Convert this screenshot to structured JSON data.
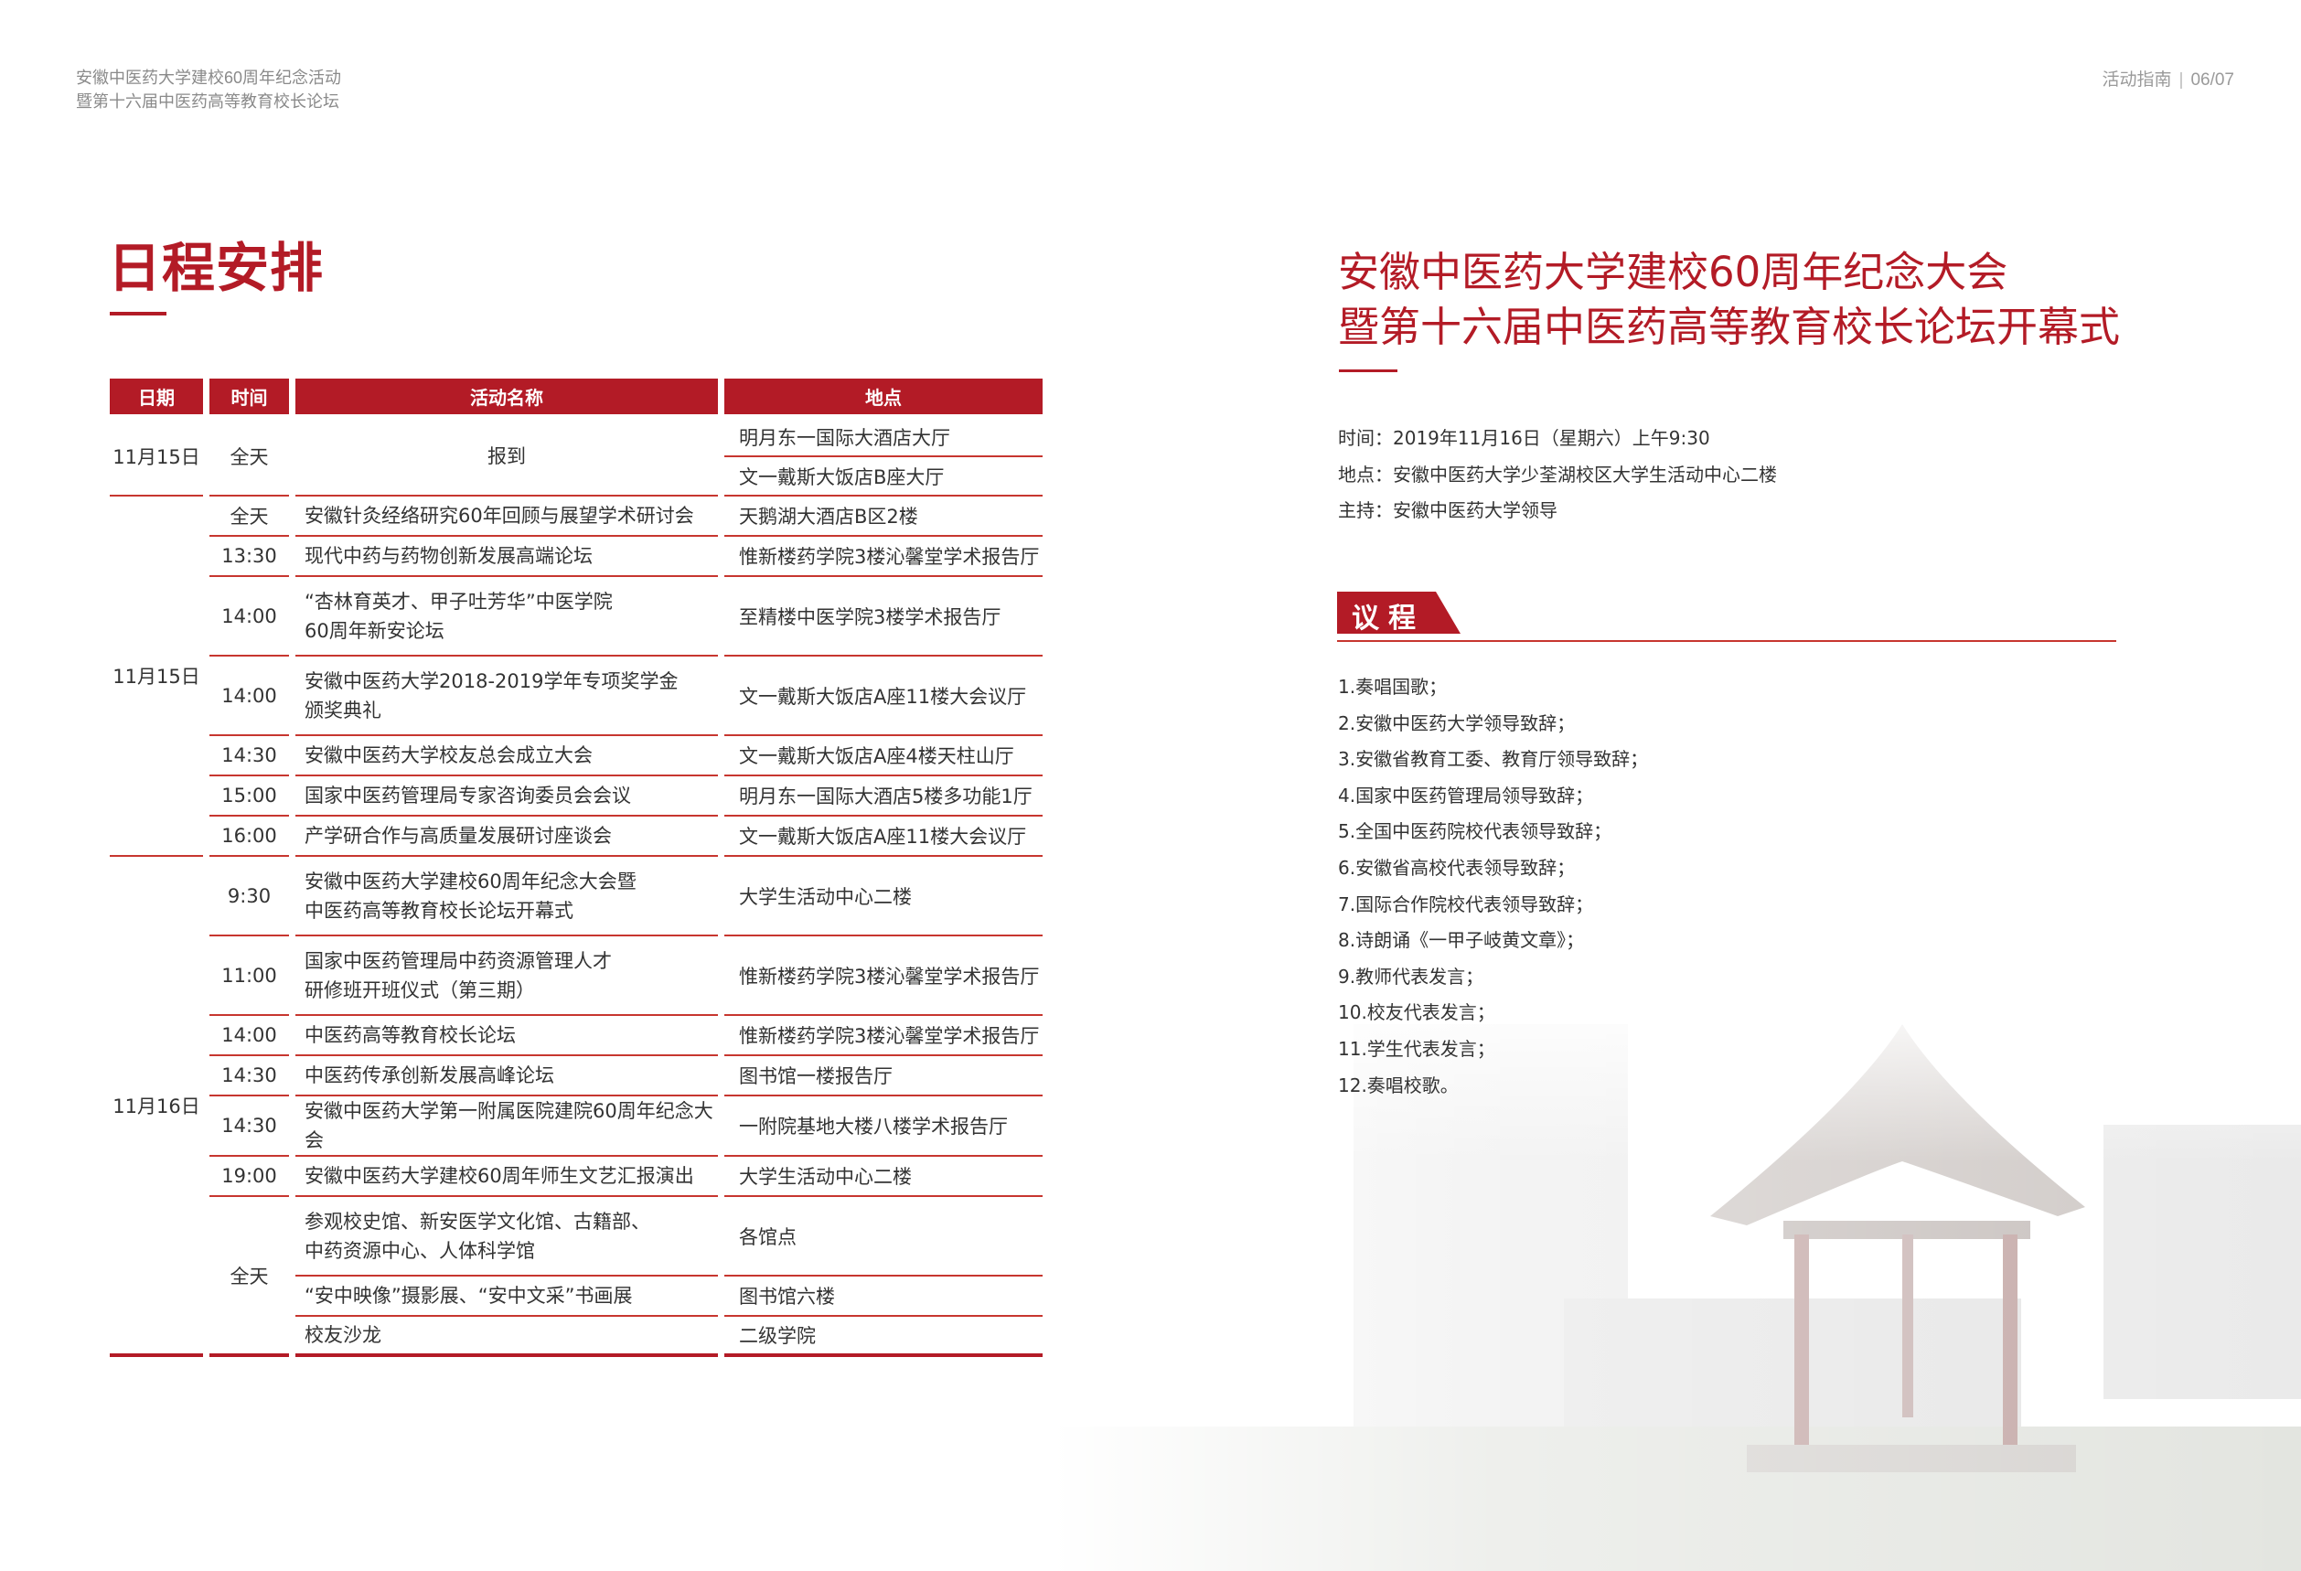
{
  "header": {
    "subtitle_line1": "安徽中医药大学建校60周年纪念活动",
    "subtitle_line2": "暨第十六届中医药高等教育校长论坛",
    "section_label": "活动指南",
    "page_number": "06/07"
  },
  "page_title": "日程安排",
  "accent_color": "#b31b26",
  "schedule": {
    "columns": [
      "日期",
      "时间",
      "活动名称",
      "地点"
    ],
    "groups": [
      {
        "date": "11月15日",
        "sessions": [
          {
            "time": "全天",
            "items": [
              {
                "activity": "报到",
                "locations": [
                  "明月东一国际大酒店大厅",
                  "文一戴斯大饭店B座大厅"
                ]
              }
            ]
          }
        ]
      },
      {
        "date": "11月15日",
        "sessions": [
          {
            "time": "全天",
            "items": [
              {
                "activity": "安徽针灸经络研究60年回顾与展望学术研讨会",
                "locations": [
                  "天鹅湖大酒店B区2楼"
                ]
              }
            ]
          },
          {
            "time": "13:30",
            "items": [
              {
                "activity": "现代中药与药物创新发展高端论坛",
                "locations": [
                  "惟新楼药学院3楼沁馨堂学术报告厅"
                ]
              }
            ]
          },
          {
            "time": "14:00",
            "items": [
              {
                "activity": "“杏林育英才、甲子吐芳华”中医学院\n60周年新安论坛",
                "locations": [
                  "至精楼中医学院3楼学术报告厅"
                ]
              }
            ]
          },
          {
            "time": "14:00",
            "items": [
              {
                "activity": "安徽中医药大学2018-2019学年专项奖学金\n颁奖典礼",
                "locations": [
                  "文一戴斯大饭店A座11楼大会议厅"
                ]
              }
            ]
          },
          {
            "time": "14:30",
            "items": [
              {
                "activity": "安徽中医药大学校友总会成立大会",
                "locations": [
                  "文一戴斯大饭店A座4楼天柱山厅"
                ]
              }
            ]
          },
          {
            "time": "15:00",
            "items": [
              {
                "activity": "国家中医药管理局专家咨询委员会会议",
                "locations": [
                  "明月东一国际大酒店5楼多功能1厅"
                ]
              }
            ]
          },
          {
            "time": "16:00",
            "items": [
              {
                "activity": "产学研合作与高质量发展研讨座谈会",
                "locations": [
                  "文一戴斯大饭店A座11楼大会议厅"
                ]
              }
            ]
          }
        ]
      },
      {
        "date": "11月16日",
        "sessions": [
          {
            "time": "9:30",
            "items": [
              {
                "activity": "安徽中医药大学建校60周年纪念大会暨\n中医药高等教育校长论坛开幕式",
                "locations": [
                  "大学生活动中心二楼"
                ]
              }
            ]
          },
          {
            "time": "11:00",
            "items": [
              {
                "activity": "国家中医药管理局中药资源管理人才\n研修班开班仪式（第三期）",
                "locations": [
                  "惟新楼药学院3楼沁馨堂学术报告厅"
                ]
              }
            ]
          },
          {
            "time": "14:00",
            "items": [
              {
                "activity": "中医药高等教育校长论坛",
                "locations": [
                  "惟新楼药学院3楼沁馨堂学术报告厅"
                ]
              }
            ]
          },
          {
            "time": "14:30",
            "items": [
              {
                "activity": "中医药传承创新发展高峰论坛",
                "locations": [
                  "图书馆一楼报告厅"
                ]
              }
            ]
          },
          {
            "time": "14:30",
            "items": [
              {
                "activity": "安徽中医药大学第一附属医院建院60周年纪念大会",
                "locations": [
                  "一附院基地大楼八楼学术报告厅"
                ]
              }
            ]
          },
          {
            "time": "19:00",
            "items": [
              {
                "activity": "安徽中医药大学建校60周年师生文艺汇报演出",
                "locations": [
                  "大学生活动中心二楼"
                ]
              }
            ]
          },
          {
            "time": "全天",
            "items": [
              {
                "activity": "参观校史馆、新安医学文化馆、古籍部、\n中药资源中心、人体科学馆",
                "locations": [
                  "各馆点"
                ]
              },
              {
                "activity": "“安中映像”摄影展、“安中文采”书画展",
                "locations": [
                  "图书馆六楼"
                ]
              },
              {
                "activity": "校友沙龙",
                "locations": [
                  "二级学院"
                ]
              }
            ]
          }
        ]
      }
    ]
  },
  "ceremony": {
    "title_line1": "安徽中医药大学建校60周年纪念大会",
    "title_line2": "暨第十六届中医药高等教育校长论坛开幕式",
    "time": "时间：2019年11月16日（星期六）上午9:30",
    "place": "地点：安徽中医药大学少荃湖校区大学生活动中心二楼",
    "host": "主持：安徽中医药大学领导"
  },
  "agenda": {
    "label": "议程",
    "items": [
      "1.奏唱国歌；",
      "2.安徽中医药大学领导致辞；",
      "3.安徽省教育工委、教育厅领导致辞；",
      "4.国家中医药管理局领导致辞；",
      "5.全国中医药院校代表领导致辞；",
      "6.安徽省高校代表领导致辞；",
      "7.国际合作院校代表领导致辞；",
      "8.诗朗诵《一甲子岐黄文章》；",
      "9.教师代表发言；",
      "10.校友代表发言；",
      "11.学生代表发言；",
      "12.奏唱校歌。"
    ]
  }
}
